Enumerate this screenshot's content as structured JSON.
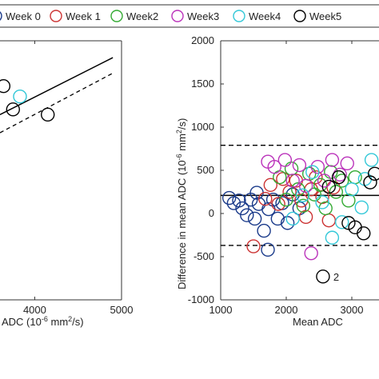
{
  "legend": {
    "placement": "top",
    "entries": [
      {
        "label": "Week 0",
        "color": "#1a3a8a"
      },
      {
        "label": "Week 1",
        "color": "#cc3333"
      },
      {
        "label": "Week2",
        "color": "#33aa33"
      },
      {
        "label": "Week3",
        "color": "#bb33bb"
      },
      {
        "label": "Week4",
        "color": "#33c8d8"
      },
      {
        "label": "Week5",
        "color": "#000000"
      }
    ]
  },
  "chart_data": [
    {
      "type": "scatter",
      "title": "",
      "xlabel_visible": "ADC (10",
      "xlabel_exp": "-6",
      "xlabel_unit": " mm",
      "xlabel_unit_exp": "2",
      "xlabel_tail": "/s)",
      "xlim": [
        3600,
        5000
      ],
      "xticks": [
        4000,
        5000
      ],
      "ylim": [
        0,
        2000
      ],
      "grid": false,
      "fit_line": {
        "x": [
          3600,
          4900
        ],
        "y": [
          1430,
          1870
        ],
        "style": "solid"
      },
      "limit_line": {
        "x": [
          3600,
          4900
        ],
        "y": [
          1290,
          1750
        ],
        "style": "dashed"
      },
      "points": [
        {
          "x": 3640,
          "y": 1650,
          "week": "Week5"
        },
        {
          "x": 3750,
          "y": 1470,
          "week": "Week5"
        },
        {
          "x": 3830,
          "y": 1570,
          "week": "Week4"
        },
        {
          "x": 4150,
          "y": 1430,
          "week": "Week5"
        }
      ]
    },
    {
      "type": "scatter",
      "title": "",
      "xlabel": "Mean ADC",
      "ylabel_main": "Difference in mean ADC (10",
      "ylabel_exp": "-6",
      "ylabel_unit": " mm",
      "ylabel_unit_exp": "2",
      "ylabel_tail": "/s)",
      "xlim": [
        1000,
        3400
      ],
      "ylim": [
        -1000,
        2000
      ],
      "xticks": [
        1000,
        2000,
        3000
      ],
      "xtick_labels": [
        "1000",
        "2000",
        "3000"
      ],
      "yticks": [
        -1000,
        -500,
        0,
        500,
        1000,
        1500,
        2000
      ],
      "ytick_labels": [
        "-1000",
        "-500",
        "0",
        "500",
        "1000",
        "1500",
        "2000"
      ],
      "grid": false,
      "mean_line": {
        "y": 210,
        "style": "solid"
      },
      "upper_loa": {
        "y": 790,
        "style": "dashed"
      },
      "lower_loa": {
        "y": -370,
        "style": "dashed"
      },
      "annotation": {
        "text": "2",
        "x": 2560,
        "y": -730
      },
      "points": [
        {
          "x": 1130,
          "y": 180,
          "week": "Week0"
        },
        {
          "x": 1200,
          "y": 120,
          "week": "Week0"
        },
        {
          "x": 1280,
          "y": 150,
          "week": "Week0"
        },
        {
          "x": 1330,
          "y": 60,
          "week": "Week0"
        },
        {
          "x": 1400,
          "y": -20,
          "week": "Week0"
        },
        {
          "x": 1460,
          "y": 160,
          "week": "Week0"
        },
        {
          "x": 1520,
          "y": -60,
          "week": "Week0"
        },
        {
          "x": 1580,
          "y": 110,
          "week": "Week0"
        },
        {
          "x": 1660,
          "y": -200,
          "week": "Week0"
        },
        {
          "x": 1730,
          "y": 50,
          "week": "Week0"
        },
        {
          "x": 1800,
          "y": 160,
          "week": "Week0"
        },
        {
          "x": 1870,
          "y": -60,
          "week": "Week0"
        },
        {
          "x": 1940,
          "y": 120,
          "week": "Week0"
        },
        {
          "x": 2020,
          "y": -110,
          "week": "Week0"
        },
        {
          "x": 2100,
          "y": 220,
          "week": "Week0"
        },
        {
          "x": 2200,
          "y": 60,
          "week": "Week0"
        },
        {
          "x": 1550,
          "y": 240,
          "week": "Week0"
        },
        {
          "x": 1720,
          "y": -420,
          "week": "Week0"
        },
        {
          "x": 1500,
          "y": -380,
          "week": "Week1"
        },
        {
          "x": 1680,
          "y": 170,
          "week": "Week1"
        },
        {
          "x": 1760,
          "y": 330,
          "week": "Week1"
        },
        {
          "x": 1880,
          "y": 110,
          "week": "Week1"
        },
        {
          "x": 1950,
          "y": 400,
          "week": "Week1"
        },
        {
          "x": 2050,
          "y": 250,
          "week": "Week1"
        },
        {
          "x": 2150,
          "y": 380,
          "week": "Week1"
        },
        {
          "x": 2230,
          "y": 150,
          "week": "Week1"
        },
        {
          "x": 2300,
          "y": -40,
          "week": "Week1"
        },
        {
          "x": 2380,
          "y": 280,
          "week": "Week1"
        },
        {
          "x": 2450,
          "y": 420,
          "week": "Week1"
        },
        {
          "x": 2550,
          "y": 190,
          "week": "Week1"
        },
        {
          "x": 2650,
          "y": -80,
          "week": "Week1"
        },
        {
          "x": 2720,
          "y": 300,
          "week": "Week1"
        },
        {
          "x": 1900,
          "y": 420,
          "week": "Week2"
        },
        {
          "x": 2000,
          "y": 160,
          "week": "Week2"
        },
        {
          "x": 2080,
          "y": 520,
          "week": "Week2"
        },
        {
          "x": 2180,
          "y": 280,
          "week": "Week2"
        },
        {
          "x": 2260,
          "y": 90,
          "week": "Week2"
        },
        {
          "x": 2350,
          "y": 460,
          "week": "Week2"
        },
        {
          "x": 2430,
          "y": 220,
          "week": "Week2"
        },
        {
          "x": 2520,
          "y": 330,
          "week": "Week2"
        },
        {
          "x": 2600,
          "y": 60,
          "week": "Week2"
        },
        {
          "x": 2680,
          "y": 480,
          "week": "Week2"
        },
        {
          "x": 2760,
          "y": 250,
          "week": "Week2"
        },
        {
          "x": 2850,
          "y": 380,
          "week": "Week2"
        },
        {
          "x": 2950,
          "y": 150,
          "week": "Week2"
        },
        {
          "x": 3050,
          "y": 420,
          "week": "Week2"
        },
        {
          "x": 1720,
          "y": 600,
          "week": "Week3"
        },
        {
          "x": 1820,
          "y": 540,
          "week": "Week3"
        },
        {
          "x": 1980,
          "y": 620,
          "week": "Week3"
        },
        {
          "x": 2100,
          "y": 380,
          "week": "Week3"
        },
        {
          "x": 2200,
          "y": 560,
          "week": "Week3"
        },
        {
          "x": 2300,
          "y": 320,
          "week": "Week3"
        },
        {
          "x": 2380,
          "y": -460,
          "week": "Week3"
        },
        {
          "x": 2480,
          "y": 540,
          "week": "Week3"
        },
        {
          "x": 2580,
          "y": 380,
          "week": "Week3"
        },
        {
          "x": 2700,
          "y": 620,
          "week": "Week3"
        },
        {
          "x": 2820,
          "y": 450,
          "week": "Week3"
        },
        {
          "x": 2930,
          "y": 580,
          "week": "Week3"
        },
        {
          "x": 2100,
          "y": -60,
          "week": "Week4"
        },
        {
          "x": 2250,
          "y": 210,
          "week": "Week4"
        },
        {
          "x": 2400,
          "y": 480,
          "week": "Week4"
        },
        {
          "x": 2550,
          "y": 130,
          "week": "Week4"
        },
        {
          "x": 2700,
          "y": -280,
          "week": "Week4"
        },
        {
          "x": 2850,
          "y": -100,
          "week": "Week4"
        },
        {
          "x": 3000,
          "y": 280,
          "week": "Week4"
        },
        {
          "x": 3150,
          "y": 70,
          "week": "Week4"
        },
        {
          "x": 3300,
          "y": 620,
          "week": "Week4"
        },
        {
          "x": 3200,
          "y": 400,
          "week": "Week4"
        },
        {
          "x": 2560,
          "y": -730,
          "week": "Week5"
        },
        {
          "x": 2650,
          "y": 310,
          "week": "Week5"
        },
        {
          "x": 2800,
          "y": 420,
          "week": "Week5"
        },
        {
          "x": 2950,
          "y": -110,
          "week": "Week5"
        },
        {
          "x": 3050,
          "y": -160,
          "week": "Week5"
        },
        {
          "x": 3180,
          "y": -230,
          "week": "Week5"
        },
        {
          "x": 3280,
          "y": 360,
          "week": "Week5"
        },
        {
          "x": 3350,
          "y": 460,
          "week": "Week5"
        }
      ]
    }
  ]
}
